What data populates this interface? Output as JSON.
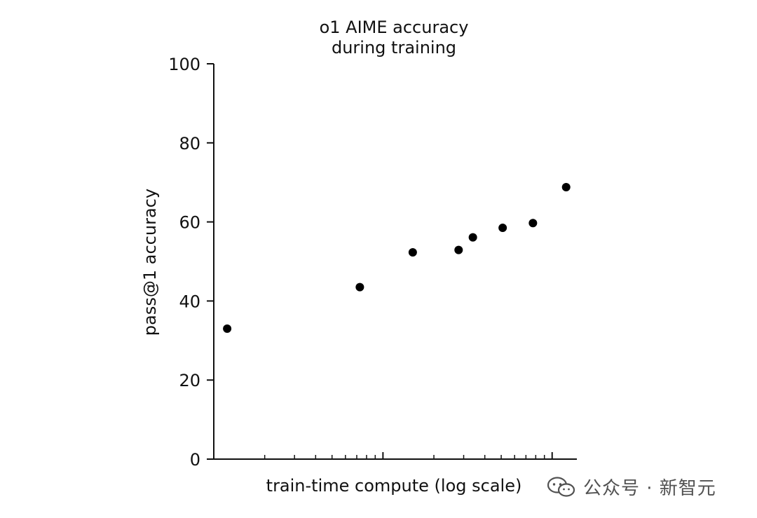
{
  "chart_data": {
    "type": "scatter",
    "title_lines": [
      "o1 AIME accuracy",
      "during training"
    ],
    "xlabel": "train-time compute (log scale)",
    "ylabel": "pass@1 accuracy",
    "x_scale": "log",
    "xlim": [
      1,
      100
    ],
    "ylim": [
      0,
      100
    ],
    "yticks": [
      0,
      20,
      40,
      60,
      80,
      100
    ],
    "x_tick_labels": [],
    "grid": false,
    "legend": "none",
    "marker_color": "#000000",
    "series": [
      {
        "x": [
          1.2,
          7.3,
          15.0,
          28.0,
          34.0,
          51.0,
          77.0,
          121.0
        ],
        "y": [
          33,
          43.5,
          52.3,
          52.9,
          56.1,
          58.5,
          59.7,
          68.8
        ]
      }
    ]
  },
  "watermark": {
    "text": "公众号 · 新智元",
    "icon": "wechat-icon"
  }
}
